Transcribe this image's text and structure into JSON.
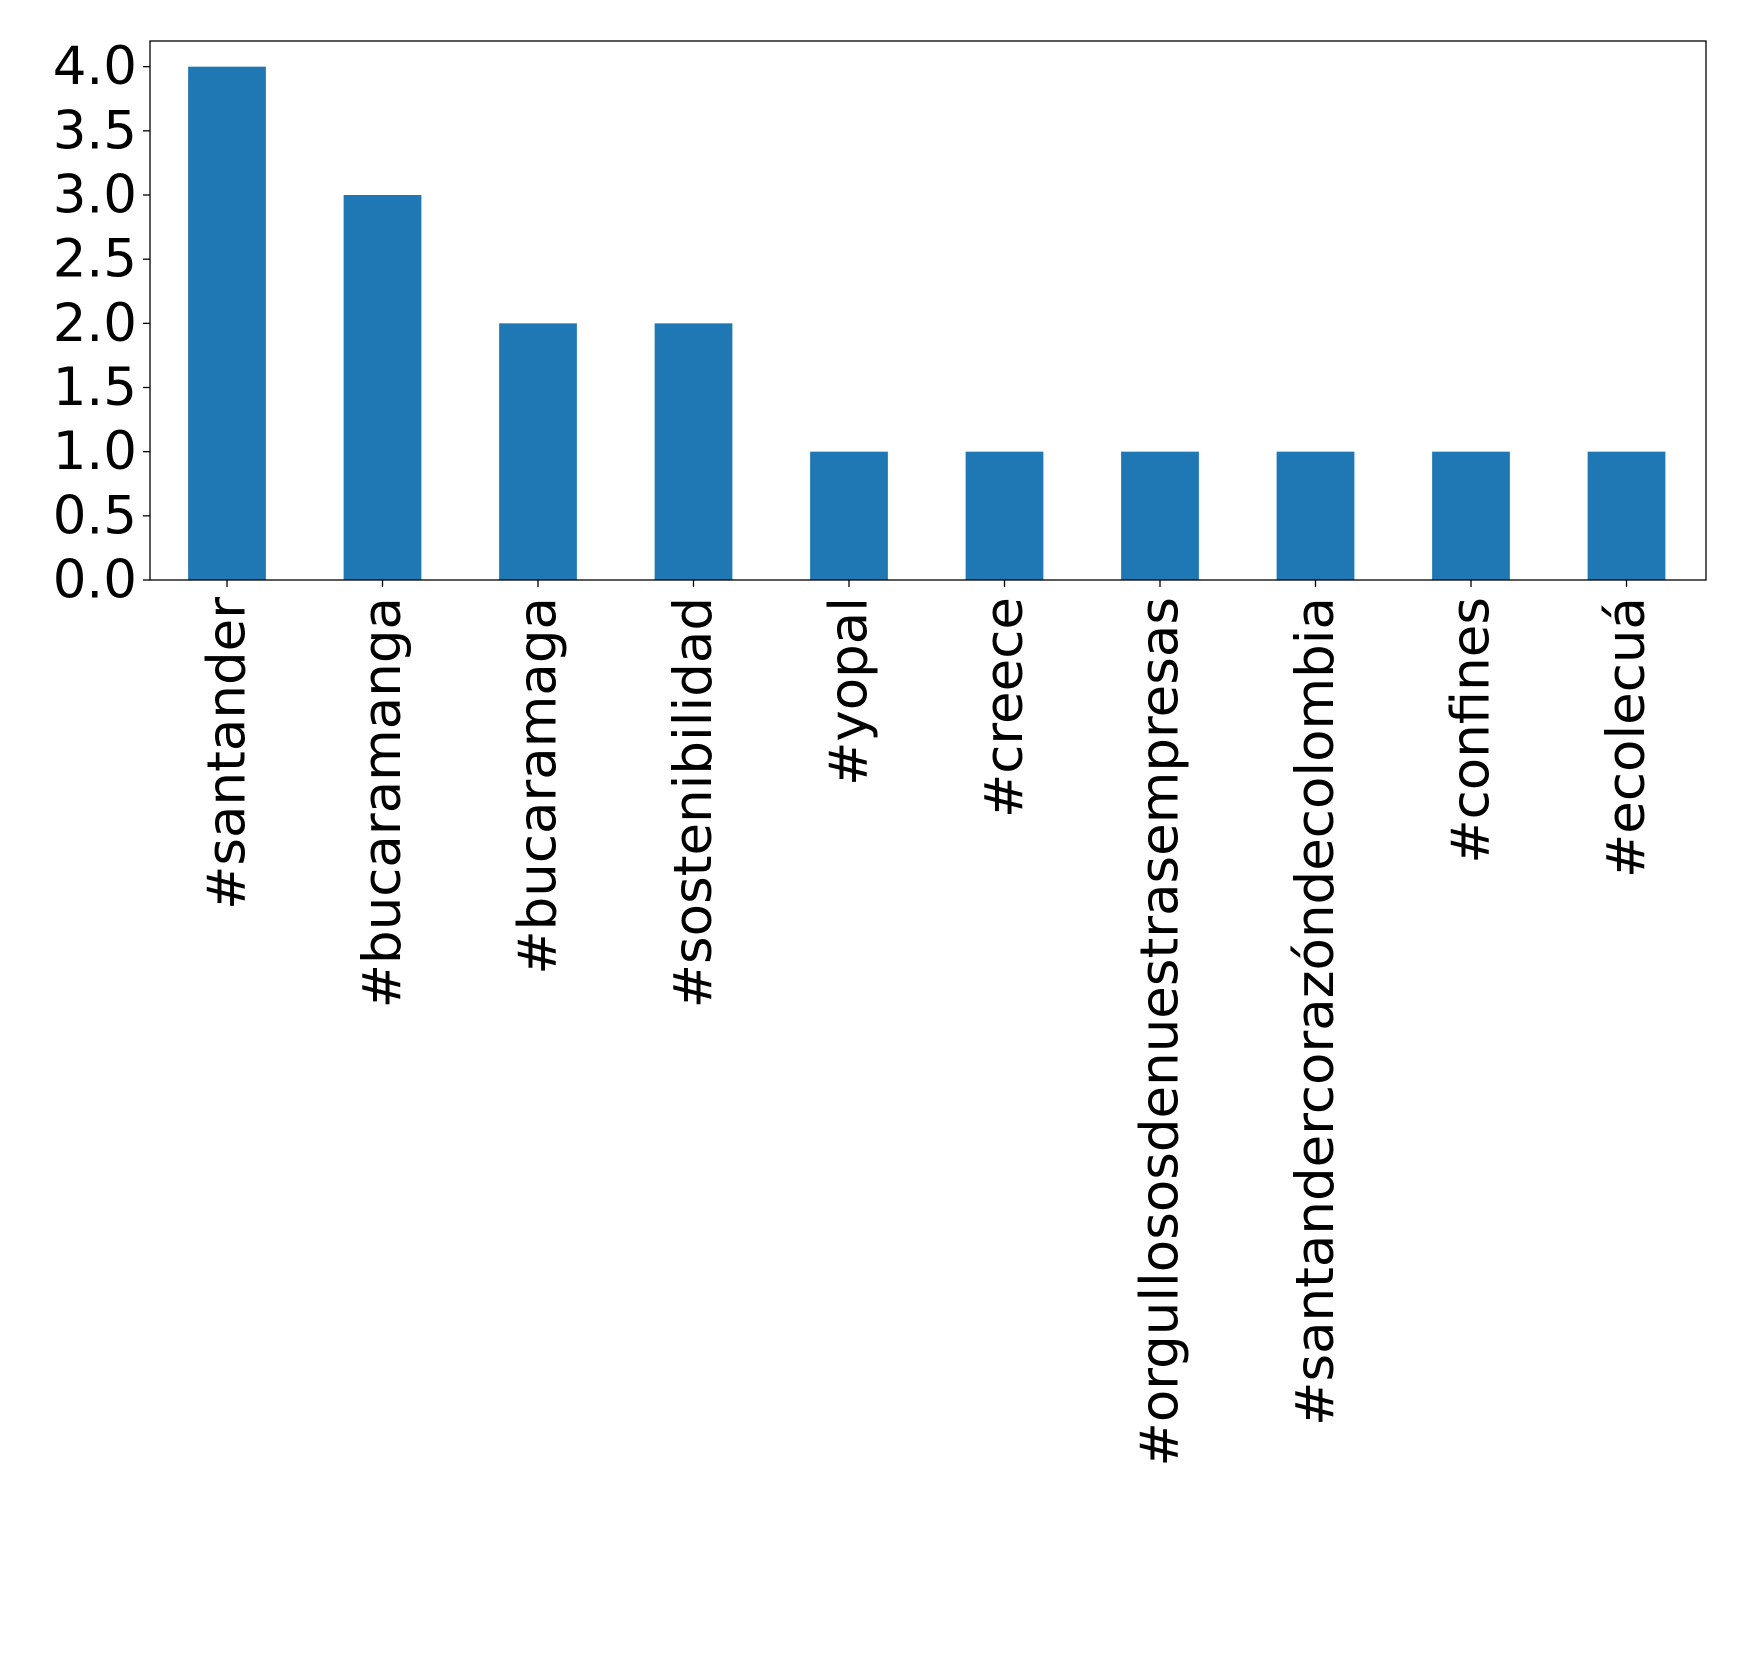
{
  "chart_data": {
    "type": "bar",
    "title": "",
    "xlabel": "",
    "ylabel": "",
    "categories": [
      "#santander",
      "#bucaramanga",
      "#bucaramaga",
      "#sostenibilidad",
      "#yopal",
      "#creece",
      "#orgullososdenuestrasempresas",
      "#santandercorazóndecolombia",
      "#confines",
      "#ecolecuá"
    ],
    "values": [
      4,
      3,
      2,
      2,
      1,
      1,
      1,
      1,
      1,
      1
    ],
    "ylim": [
      0,
      4.2
    ],
    "yticks": [
      "0.0",
      "0.5",
      "1.0",
      "1.5",
      "2.0",
      "2.5",
      "3.0",
      "3.5",
      "4.0"
    ],
    "grid": false,
    "legend": "none",
    "bar_color": "#1f77b4"
  }
}
